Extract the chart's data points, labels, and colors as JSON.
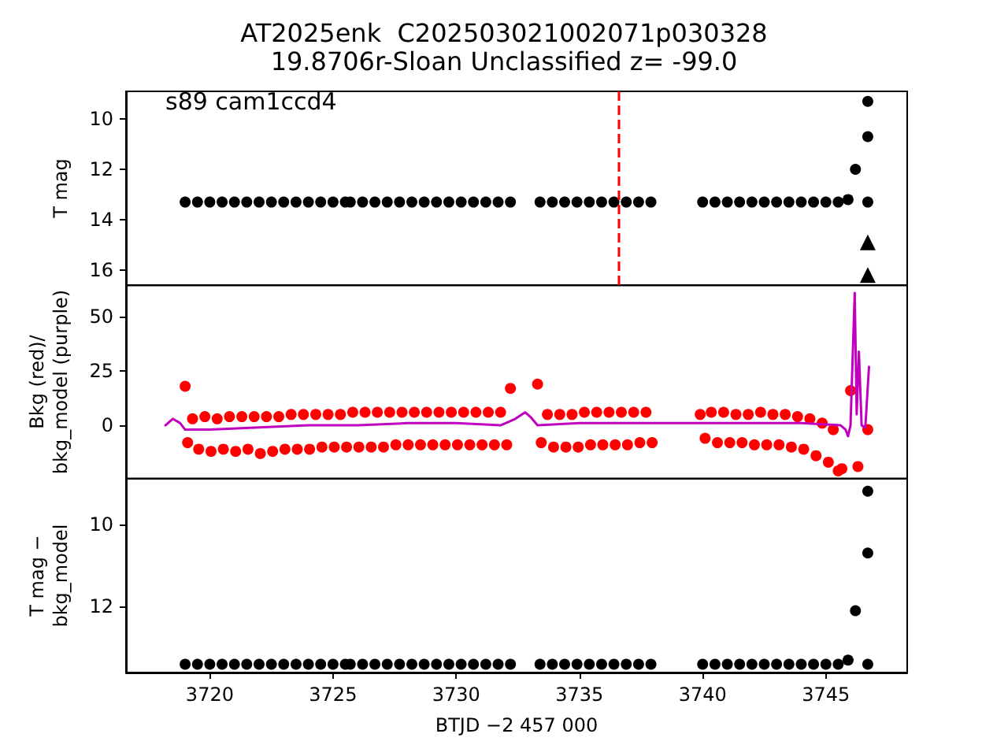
{
  "chart_data": [
    {
      "type": "scatter",
      "title": "AT2025enk  C202503021002071p030328",
      "subtitle": "19.8706r-Sloan Unclassified z= -99.0",
      "ylabel": "T mag",
      "annotations": [
        "s89 cam1ccd4"
      ],
      "xlim": [
        3716.6,
        3748.3
      ],
      "xticks": [
        3720,
        3725,
        3730,
        3735,
        3740,
        3745
      ],
      "ylim": [
        16.6,
        8.9
      ],
      "yticks": [
        10,
        12,
        14,
        16
      ],
      "tick_labels": "y",
      "grid": false,
      "ref_lines": [
        {
          "axis": "x",
          "value": 3736.6,
          "color": "#ff0000",
          "line_style": "dashed"
        }
      ],
      "series": [
        {
          "color": "#000000",
          "marker": "circle",
          "x": [
            3719.0,
            3719.5,
            3720.0,
            3720.5,
            3721.0,
            3721.5,
            3722.0,
            3722.5,
            3723.0,
            3723.5,
            3724.0,
            3724.5,
            3725.0,
            3725.5,
            3725.7,
            3726.2,
            3726.7,
            3727.2,
            3727.7,
            3728.2,
            3728.7,
            3729.2,
            3729.7,
            3730.2,
            3730.7,
            3731.2,
            3731.7,
            3732.2,
            3733.4,
            3733.9,
            3734.4,
            3734.9,
            3735.4,
            3735.9,
            3736.4,
            3736.9,
            3737.4,
            3737.9,
            3740.0,
            3740.5,
            3741.0,
            3741.5,
            3742.0,
            3742.5,
            3743.0,
            3743.5,
            3744.0,
            3744.5,
            3745.0,
            3745.5,
            3745.9,
            3746.2,
            3746.7,
            3746.7,
            3746.7
          ],
          "values": [
            13.3,
            13.3,
            13.3,
            13.3,
            13.3,
            13.3,
            13.3,
            13.3,
            13.3,
            13.3,
            13.3,
            13.3,
            13.3,
            13.3,
            13.3,
            13.3,
            13.3,
            13.3,
            13.3,
            13.3,
            13.3,
            13.3,
            13.3,
            13.3,
            13.3,
            13.3,
            13.3,
            13.3,
            13.3,
            13.3,
            13.3,
            13.3,
            13.3,
            13.3,
            13.3,
            13.3,
            13.3,
            13.3,
            13.3,
            13.3,
            13.3,
            13.3,
            13.3,
            13.3,
            13.3,
            13.3,
            13.3,
            13.3,
            13.3,
            13.3,
            13.2,
            12.0,
            13.3,
            10.7,
            9.3
          ]
        },
        {
          "color": "#000000",
          "marker": "triangle",
          "x": [
            3746.7,
            3746.7
          ],
          "values": [
            14.9,
            16.2
          ]
        }
      ]
    },
    {
      "type": "scatter",
      "ylabel": "Bkg (red)/\nbkg_model (purple)",
      "xlim": [
        3716.6,
        3748.3
      ],
      "xticks": [
        3720,
        3725,
        3730,
        3735,
        3740,
        3745
      ],
      "ylim": [
        -24.5,
        64.5
      ],
      "yticks": [
        0,
        25,
        50
      ],
      "tick_labels": "y",
      "grid": false,
      "series": [
        {
          "color": "#ff0000",
          "marker": "circle",
          "x": [
            3719.0,
            3719.1,
            3719.3,
            3719.55,
            3719.8,
            3720.05,
            3720.3,
            3720.55,
            3720.8,
            3721.05,
            3721.3,
            3721.55,
            3721.8,
            3722.05,
            3722.3,
            3722.55,
            3722.8,
            3723.05,
            3723.3,
            3723.55,
            3723.8,
            3724.05,
            3724.3,
            3724.55,
            3724.8,
            3725.05,
            3725.3,
            3725.55,
            3725.8,
            3726.05,
            3726.3,
            3726.55,
            3726.8,
            3727.05,
            3727.3,
            3727.55,
            3727.8,
            3728.05,
            3728.3,
            3728.55,
            3728.8,
            3729.05,
            3729.3,
            3729.55,
            3729.8,
            3730.05,
            3730.3,
            3730.55,
            3730.8,
            3731.05,
            3731.3,
            3731.55,
            3731.8,
            3732.05,
            3732.2,
            3733.3,
            3733.45,
            3733.7,
            3733.95,
            3734.2,
            3734.45,
            3734.7,
            3734.95,
            3735.2,
            3735.45,
            3735.7,
            3735.95,
            3736.2,
            3736.45,
            3736.7,
            3736.95,
            3737.2,
            3737.45,
            3737.7,
            3737.95,
            3739.9,
            3740.1,
            3740.35,
            3740.6,
            3740.85,
            3741.1,
            3741.35,
            3741.6,
            3741.85,
            3742.1,
            3742.35,
            3742.6,
            3742.85,
            3743.1,
            3743.35,
            3743.6,
            3743.85,
            3744.1,
            3744.35,
            3744.6,
            3744.85,
            3745.1,
            3745.3,
            3745.5,
            3745.65,
            3746.0,
            3746.3,
            3746.7
          ],
          "values": [
            18,
            -8,
            3,
            -11,
            4,
            -12,
            3,
            -11,
            4,
            -12,
            4,
            -11,
            4,
            -13,
            4,
            -12,
            4,
            -11,
            5,
            -11,
            5,
            -11,
            5,
            -10,
            5,
            -10,
            5,
            -10,
            6,
            -10,
            6,
            -10,
            6,
            -10,
            6,
            -9,
            6,
            -9,
            6,
            -9,
            6,
            -9,
            6,
            -9,
            6,
            -9,
            6,
            -9,
            6,
            -9,
            6,
            -9,
            6,
            -9,
            17,
            19,
            -8,
            5,
            -10,
            5,
            -10,
            5,
            -10,
            6,
            -9,
            6,
            -9,
            6,
            -9,
            6,
            -9,
            6,
            -8,
            6,
            -8,
            5,
            -6,
            6,
            -8,
            6,
            -8,
            5,
            -8,
            5,
            -9,
            6,
            -9,
            5,
            -9,
            5,
            -10,
            4,
            -11,
            3,
            -14,
            1,
            -17,
            -2,
            -21,
            -20,
            16,
            -19,
            -2
          ]
        },
        {
          "type": "line",
          "color": "#bf00bf",
          "marker": "none",
          "line_style": "solid",
          "x": [
            3718.2,
            3718.5,
            3718.8,
            3719.0,
            3720.0,
            3722.0,
            3724.0,
            3726.0,
            3728.0,
            3730.0,
            3731.8,
            3732.4,
            3732.8,
            3733.0,
            3733.3,
            3735.0,
            3738.0,
            3740.0,
            3742.0,
            3744.0,
            3745.6,
            3745.8,
            3745.9,
            3746.0,
            3746.17,
            3746.25,
            3746.34,
            3746.45,
            3746.6,
            3746.75
          ],
          "values": [
            0,
            3,
            1,
            -2,
            -2,
            -1,
            0,
            0,
            1,
            1,
            0,
            3,
            6,
            4,
            0,
            1,
            1,
            1,
            1,
            1,
            0,
            -2,
            -5,
            0,
            61,
            5,
            34,
            0,
            -1,
            27
          ]
        }
      ]
    },
    {
      "type": "scatter",
      "xlabel": "BTJD −2 457 000",
      "ylabel": "T mag −\nbkg_model",
      "xlim": [
        3716.6,
        3748.3
      ],
      "xticks": [
        3720,
        3725,
        3730,
        3735,
        3740,
        3745
      ],
      "ylim": [
        13.6,
        8.9
      ],
      "yticks": [
        10,
        12
      ],
      "grid": false,
      "series": [
        {
          "color": "#000000",
          "marker": "circle",
          "x": [
            3719.0,
            3719.5,
            3720.0,
            3720.5,
            3721.0,
            3721.5,
            3722.0,
            3722.5,
            3723.0,
            3723.5,
            3724.0,
            3724.5,
            3725.0,
            3725.5,
            3725.7,
            3726.2,
            3726.7,
            3727.2,
            3727.7,
            3728.2,
            3728.7,
            3729.2,
            3729.7,
            3730.2,
            3730.7,
            3731.2,
            3731.7,
            3732.2,
            3733.4,
            3733.9,
            3734.4,
            3734.9,
            3735.4,
            3735.9,
            3736.4,
            3736.9,
            3737.4,
            3737.9,
            3740.0,
            3740.5,
            3741.0,
            3741.5,
            3742.0,
            3742.5,
            3743.0,
            3743.5,
            3744.0,
            3744.5,
            3745.0,
            3745.5,
            3745.9,
            3746.2,
            3746.7,
            3746.7,
            3746.7
          ],
          "values": [
            13.4,
            13.4,
            13.4,
            13.4,
            13.4,
            13.4,
            13.4,
            13.4,
            13.4,
            13.4,
            13.4,
            13.4,
            13.4,
            13.4,
            13.4,
            13.4,
            13.4,
            13.4,
            13.4,
            13.4,
            13.4,
            13.4,
            13.4,
            13.4,
            13.4,
            13.4,
            13.4,
            13.4,
            13.4,
            13.4,
            13.4,
            13.4,
            13.4,
            13.4,
            13.4,
            13.4,
            13.4,
            13.4,
            13.4,
            13.4,
            13.4,
            13.4,
            13.4,
            13.4,
            13.4,
            13.4,
            13.4,
            13.4,
            13.4,
            13.4,
            13.3,
            12.1,
            13.4,
            10.7,
            9.2
          ]
        }
      ]
    }
  ]
}
